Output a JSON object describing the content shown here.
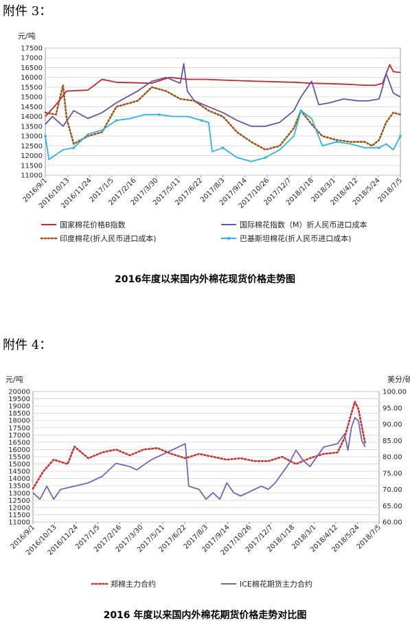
{
  "heading1": "附件 3：",
  "heading2": "附件 4：",
  "chart_data": [
    {
      "type": "line",
      "title": "2016年度以来国内外棉花现货价格走势图",
      "ylabel": "元/吨",
      "ylim": [
        11000,
        17500
      ],
      "yticks": [
        "11000",
        "11500",
        "12000",
        "12500",
        "13000",
        "13500",
        "14000",
        "14500",
        "15000",
        "15500",
        "16000",
        "16500",
        "17000",
        "17500"
      ],
      "x_ticks": [
        "2016/9/1",
        "2016/10/13",
        "2016/11/24",
        "2017/1/5",
        "2017/2/16",
        "2017/3/30",
        "2017/5/11",
        "2017/6/22",
        "2017/8/3",
        "2017/9/14",
        "2017/10/26",
        "2017/12/7",
        "2018/1/18",
        "2018/3/1",
        "2018/4/12",
        "2018/5/24",
        "2018/7/5"
      ],
      "grid": true,
      "legend_position": "bottom",
      "series": [
        {
          "name": "国家棉花价格B指数",
          "color": "#c8252c",
          "style": "solid",
          "x": [
            0,
            0.03,
            0.06,
            0.12,
            0.16,
            0.2,
            0.3,
            0.35,
            0.4,
            0.45,
            0.52,
            0.6,
            0.7,
            0.75,
            0.8,
            0.85,
            0.9,
            0.93,
            0.95,
            0.96,
            0.97,
            0.98,
            1.0
          ],
          "values": [
            14000,
            14600,
            15300,
            15350,
            15900,
            15750,
            15700,
            16000,
            15900,
            15900,
            15850,
            15800,
            15750,
            15700,
            15680,
            15650,
            15600,
            15600,
            15700,
            16200,
            16650,
            16300,
            16250
          ]
        },
        {
          "name": "国际棉花指数（M）折人民币进口成本",
          "color": "#6a51a3",
          "style": "solid",
          "x": [
            0,
            0.02,
            0.05,
            0.08,
            0.12,
            0.16,
            0.2,
            0.26,
            0.3,
            0.34,
            0.38,
            0.39,
            0.4,
            0.42,
            0.46,
            0.5,
            0.54,
            0.58,
            0.62,
            0.66,
            0.7,
            0.72,
            0.75,
            0.77,
            0.8,
            0.84,
            0.88,
            0.91,
            0.94,
            0.95,
            0.96,
            0.98,
            1.0
          ],
          "values": [
            13600,
            14000,
            13500,
            14300,
            13900,
            14200,
            14700,
            15300,
            15800,
            16000,
            15700,
            16700,
            15300,
            14800,
            14500,
            14200,
            13800,
            13500,
            13500,
            13700,
            14300,
            15000,
            15800,
            14600,
            14700,
            14900,
            14800,
            14800,
            14900,
            15500,
            16200,
            15200,
            15000
          ]
        },
        {
          "name": "印度棉花(折人民币进口成本)",
          "color": "#9c5417",
          "style": "dotted",
          "x": [
            0,
            0.03,
            0.05,
            0.06,
            0.08,
            0.1,
            0.12,
            0.16,
            0.2,
            0.26,
            0.3,
            0.34,
            0.38,
            0.42,
            0.46,
            0.5,
            0.54,
            0.58,
            0.62,
            0.66,
            0.7,
            0.72,
            0.75,
            0.78,
            0.82,
            0.86,
            0.9,
            0.92,
            0.94,
            0.96,
            0.98,
            1.0
          ],
          "values": [
            14200,
            14100,
            15600,
            13900,
            12600,
            12800,
            13000,
            13200,
            14500,
            14800,
            15500,
            15300,
            14900,
            14800,
            14300,
            14000,
            13200,
            12700,
            12300,
            12500,
            13400,
            14300,
            13600,
            13000,
            12800,
            12700,
            12700,
            12500,
            12800,
            13700,
            14200,
            14100
          ]
        },
        {
          "name": "巴基斯坦棉花(折人民币进口成本)",
          "color": "#29b5e8",
          "style": "solid",
          "x": [
            0,
            0.01,
            0.05,
            0.08,
            0.12,
            0.16,
            0.2,
            0.24,
            0.28,
            0.32,
            0.36,
            0.4,
            0.44,
            0.46,
            0.47,
            0.5,
            0.54,
            0.58,
            0.62,
            0.66,
            0.7,
            0.72,
            0.75,
            0.78,
            0.82,
            0.86,
            0.9,
            0.94,
            0.96,
            0.98,
            1.0
          ],
          "values": [
            13000,
            11800,
            12300,
            12400,
            13100,
            13300,
            13800,
            13900,
            14100,
            14100,
            14000,
            14000,
            13800,
            13700,
            12200,
            12400,
            11900,
            11700,
            11900,
            12300,
            13000,
            14300,
            13900,
            12500,
            12700,
            12600,
            12400,
            12400,
            12600,
            12300,
            13000
          ]
        }
      ]
    },
    {
      "type": "line",
      "title": "2016 年度以来国内外棉花期货价格走势对比图",
      "ylabel": "元/吨",
      "ylabel_right": "美分/磅",
      "ylim": [
        11000,
        20000
      ],
      "ylim_right": [
        60,
        100
      ],
      "yticks": [
        "11000",
        "11500",
        "12000",
        "12500",
        "13000",
        "13500",
        "14000",
        "14500",
        "15000",
        "15500",
        "16000",
        "16500",
        "17000",
        "17500",
        "18000",
        "18500",
        "19000",
        "19500",
        "20000"
      ],
      "yticks_right": [
        "60.00",
        "65.00",
        "70.00",
        "75.00",
        "80.00",
        "85.00",
        "90.00",
        "95.00",
        "100.00"
      ],
      "x_ticks": [
        "2016/9/1",
        "2016/10/13",
        "2016/11/24",
        "2017/1/5",
        "2017/2/16",
        "2017/3/30",
        "2017/5/11",
        "2017/6/22",
        "2017/8/3",
        "2017/9/14",
        "2017/10/26",
        "2017/12/7",
        "2018/1/18",
        "2018/3/1",
        "2018/4/12",
        "2018/5/24",
        "2018/7/5"
      ],
      "grid": true,
      "legend_position": "bottom",
      "series": [
        {
          "name": "郑棉主力合约",
          "axis": "left",
          "color": "#d42a2a",
          "style": "dotted",
          "x": [
            0,
            0.03,
            0.06,
            0.1,
            0.12,
            0.16,
            0.2,
            0.24,
            0.28,
            0.32,
            0.36,
            0.4,
            0.44,
            0.48,
            0.52,
            0.56,
            0.6,
            0.64,
            0.68,
            0.72,
            0.76,
            0.8,
            0.84,
            0.88,
            0.9,
            0.92,
            0.93,
            0.94,
            0.95,
            0.96
          ],
          "values": [
            13300,
            14500,
            15300,
            15000,
            16200,
            15400,
            15800,
            16000,
            15600,
            16000,
            16100,
            15700,
            15400,
            15700,
            15500,
            15300,
            15400,
            15200,
            15200,
            15500,
            15000,
            15400,
            15700,
            15800,
            16800,
            18500,
            19300,
            18800,
            17600,
            16400
          ]
        },
        {
          "name": "ICE棉花期货主力合约",
          "axis": "right",
          "color": "#7b5fb3",
          "style": "solid",
          "x": [
            0,
            0.02,
            0.04,
            0.06,
            0.08,
            0.12,
            0.16,
            0.2,
            0.24,
            0.28,
            0.3,
            0.34,
            0.38,
            0.42,
            0.44,
            0.45,
            0.48,
            0.5,
            0.52,
            0.54,
            0.56,
            0.58,
            0.6,
            0.62,
            0.64,
            0.66,
            0.68,
            0.7,
            0.72,
            0.74,
            0.76,
            0.78,
            0.8,
            0.84,
            0.88,
            0.9,
            0.91,
            0.92,
            0.93,
            0.94,
            0.95,
            0.96
          ],
          "values": [
            69,
            67,
            71,
            67,
            70,
            71,
            72,
            74,
            78,
            77,
            76,
            79,
            81,
            83,
            84,
            71,
            70,
            67,
            69,
            67,
            72,
            69,
            68,
            69,
            70,
            71,
            70,
            72,
            75,
            78,
            82,
            79,
            77,
            83,
            84,
            87,
            82,
            89,
            92,
            91,
            85,
            83
          ]
        }
      ]
    }
  ]
}
